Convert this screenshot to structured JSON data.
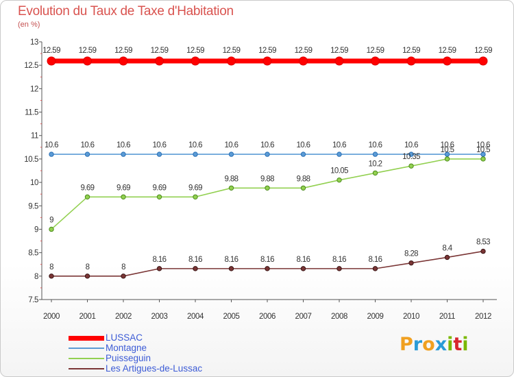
{
  "chart": {
    "title": "Evolution du Taux de Taxe d'Habitation",
    "subtitle": "(en %)"
  },
  "chart_data": {
    "type": "line",
    "title": "Evolution du Taux de Taxe d'Habitation",
    "subtitle": "(en %)",
    "xlabel": "",
    "ylabel": "",
    "x": [
      "2000",
      "2001",
      "2002",
      "2003",
      "2004",
      "2005",
      "2006",
      "2007",
      "2008",
      "2009",
      "2010",
      "2011",
      "2012"
    ],
    "ylim": [
      7.5,
      13
    ],
    "yticks": [
      "7.5",
      "8",
      "8.5",
      "9",
      "9.5",
      "10",
      "10.5",
      "11",
      "11.5",
      "12",
      "12.5",
      "13"
    ],
    "grid": false,
    "legend_position": "bottom-left",
    "series": [
      {
        "name": "LUSSAC",
        "color": "#ff0000",
        "values": [
          12.59,
          12.59,
          12.59,
          12.59,
          12.59,
          12.59,
          12.59,
          12.59,
          12.59,
          12.59,
          12.59,
          12.59,
          12.59
        ],
        "labels": [
          "12.59",
          "12.59",
          "12.59",
          "12.59",
          "12.59",
          "12.59",
          "12.59",
          "12.59",
          "12.59",
          "12.59",
          "12.59",
          "12.59",
          "12.59"
        ]
      },
      {
        "name": "Montagne",
        "color": "#5b9bd5",
        "values": [
          10.6,
          10.6,
          10.6,
          10.6,
          10.6,
          10.6,
          10.6,
          10.6,
          10.6,
          10.6,
          10.6,
          10.6,
          10.6
        ],
        "labels": [
          "10.6",
          "10.6",
          "10.6",
          "10.6",
          "10.6",
          "10.6",
          "10.6",
          "10.6",
          "10.6",
          "10.6",
          "10.6",
          "10.6",
          "10.6"
        ]
      },
      {
        "name": "Puisseguin",
        "color": "#92d050",
        "values": [
          9,
          9.69,
          9.69,
          9.69,
          9.69,
          9.88,
          9.88,
          9.88,
          10.05,
          10.2,
          10.35,
          10.5,
          10.5
        ],
        "labels": [
          "9",
          "9.69",
          "9.69",
          "9.69",
          "9.69",
          "9.88",
          "9.88",
          "9.88",
          "10.05",
          "10.2",
          "10.35",
          "10.5",
          "10.5"
        ]
      },
      {
        "name": "Les Artigues-de-Lussac",
        "color": "#7a3535",
        "values": [
          8,
          8,
          8,
          8.16,
          8.16,
          8.16,
          8.16,
          8.16,
          8.16,
          8.16,
          8.28,
          8.4,
          8.53
        ],
        "labels": [
          "8",
          "8",
          "8",
          "8.16",
          "8.16",
          "8.16",
          "8.16",
          "8.16",
          "8.16",
          "8.16",
          "8.28",
          "8.4",
          "8.53"
        ]
      }
    ]
  },
  "logo": {
    "letters": [
      "P",
      "r",
      "o",
      "x",
      "i",
      "t",
      "i"
    ],
    "colors": [
      "#f0a020",
      "#2a9bd6",
      "#f0a020",
      "#2a9bd6",
      "#7ab800",
      "#d8262e",
      "#7ab800"
    ]
  }
}
